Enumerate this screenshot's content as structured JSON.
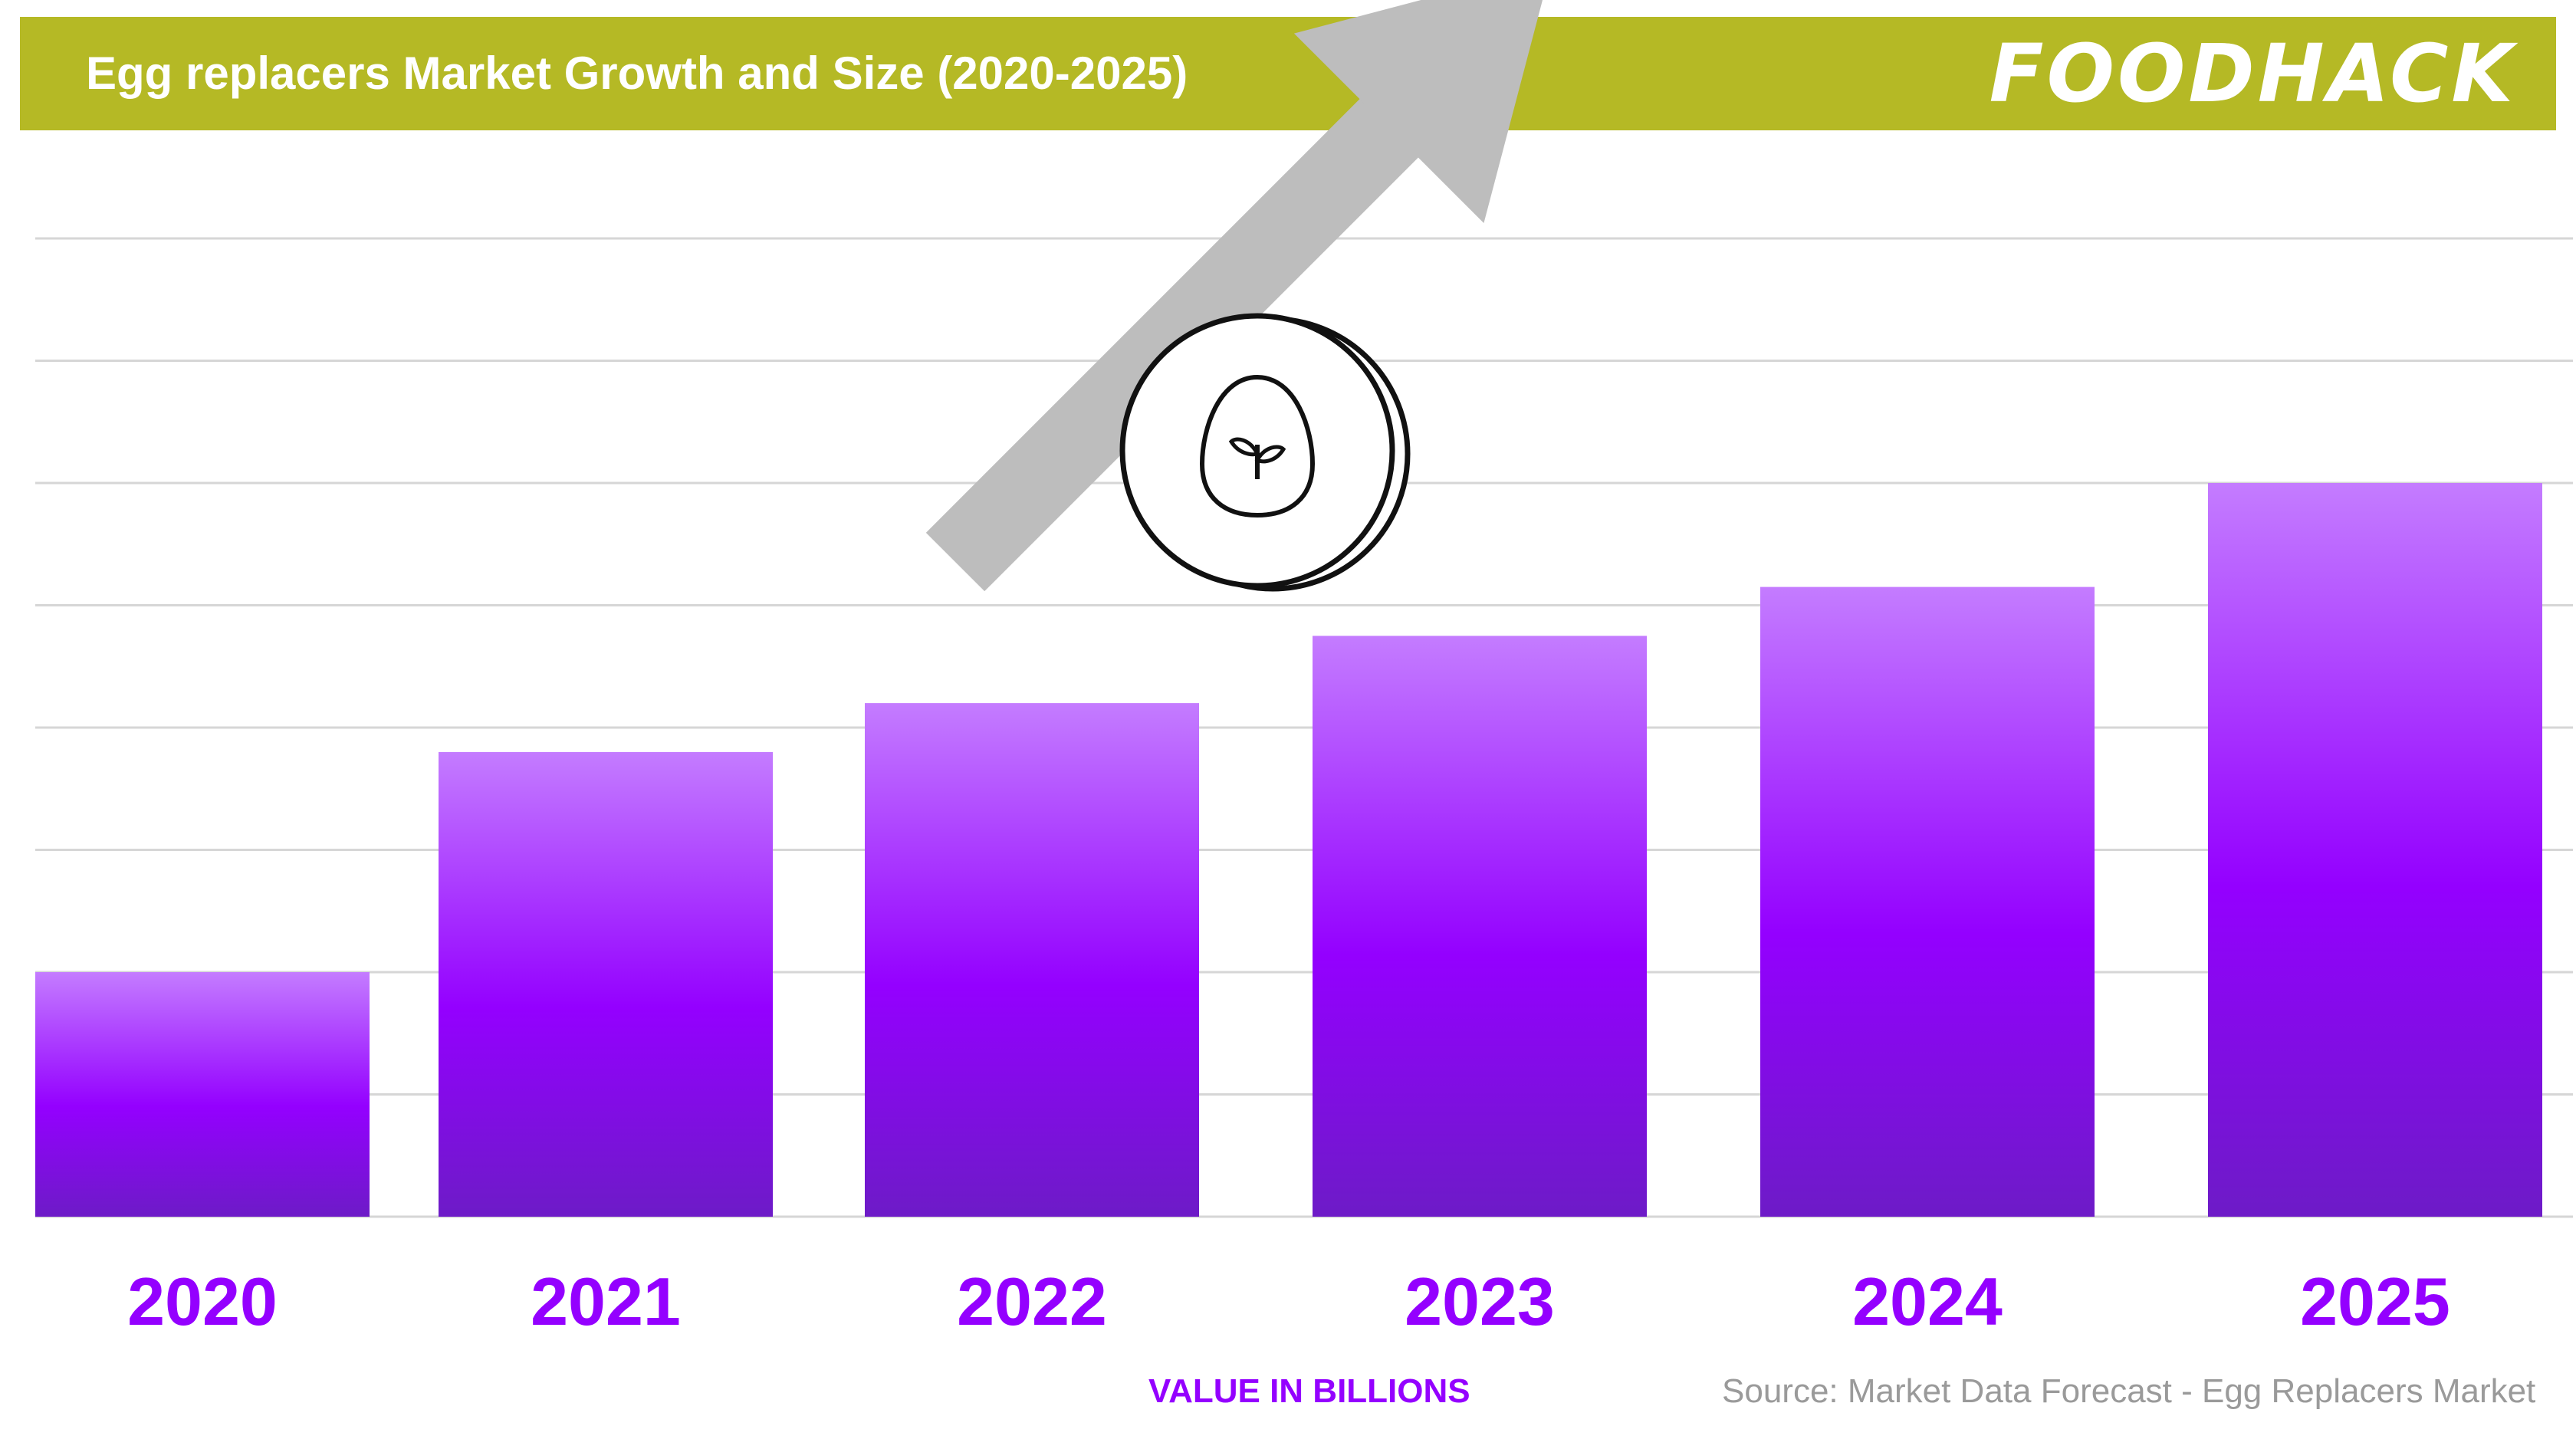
{
  "header": {
    "title": "Egg replacers Market Growth and Size (2020-2025)",
    "logo_text": "FOODHACK",
    "background_color": "#b5b925"
  },
  "icons": [
    "trend-up-arrow-icon",
    "egg-sprout-coin-icon"
  ],
  "footer": {
    "value_note": "VALUE IN BILLIONS",
    "source": "Source: Market Data Forecast - Egg Replacers Market"
  },
  "chart_data": {
    "type": "bar",
    "categories": [
      "2020",
      "2021",
      "2022",
      "2023",
      "2024",
      "2025"
    ],
    "values": [
      2.0,
      3.8,
      4.2,
      4.75,
      5.15,
      6.0
    ],
    "ylim": [
      0,
      9
    ],
    "gridlines": true,
    "title": "Egg replacers Market Growth and Size (2020-2025)",
    "xlabel": "",
    "ylabel": "",
    "bar_color_top": "#c47cff",
    "bar_color_mid": "#9400ff",
    "bar_color_bottom": "#6d1bc7",
    "tick_label_color": "#9400ff"
  }
}
